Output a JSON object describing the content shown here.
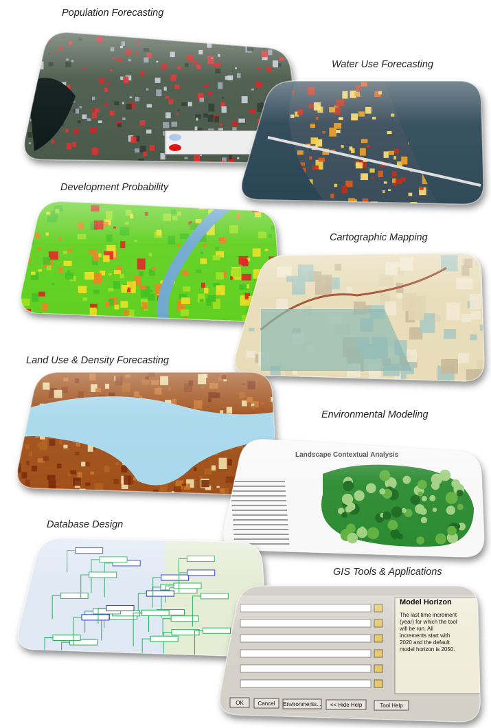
{
  "captions": [
    "Population Forecasting",
    "Water Use Forecasting",
    "Development Probability",
    "Cartographic Mapping",
    "Land Use & Density Forecasting",
    "Environmental Modeling",
    "Database Design",
    "GIS Tools & Applications"
  ],
  "environmental": {
    "title": "Landscape Contextual Analysis"
  },
  "tool_dialog": {
    "help_title": "Model Horizon",
    "help_text": [
      "The last time increment",
      "(year) for which the tool",
      "will be run. All",
      "increments start with",
      "2020 and the default",
      "model horizon is 2050."
    ],
    "buttons": [
      "OK",
      "Cancel",
      "Environments...",
      "<< Hide Help",
      "Tool Help"
    ]
  }
}
